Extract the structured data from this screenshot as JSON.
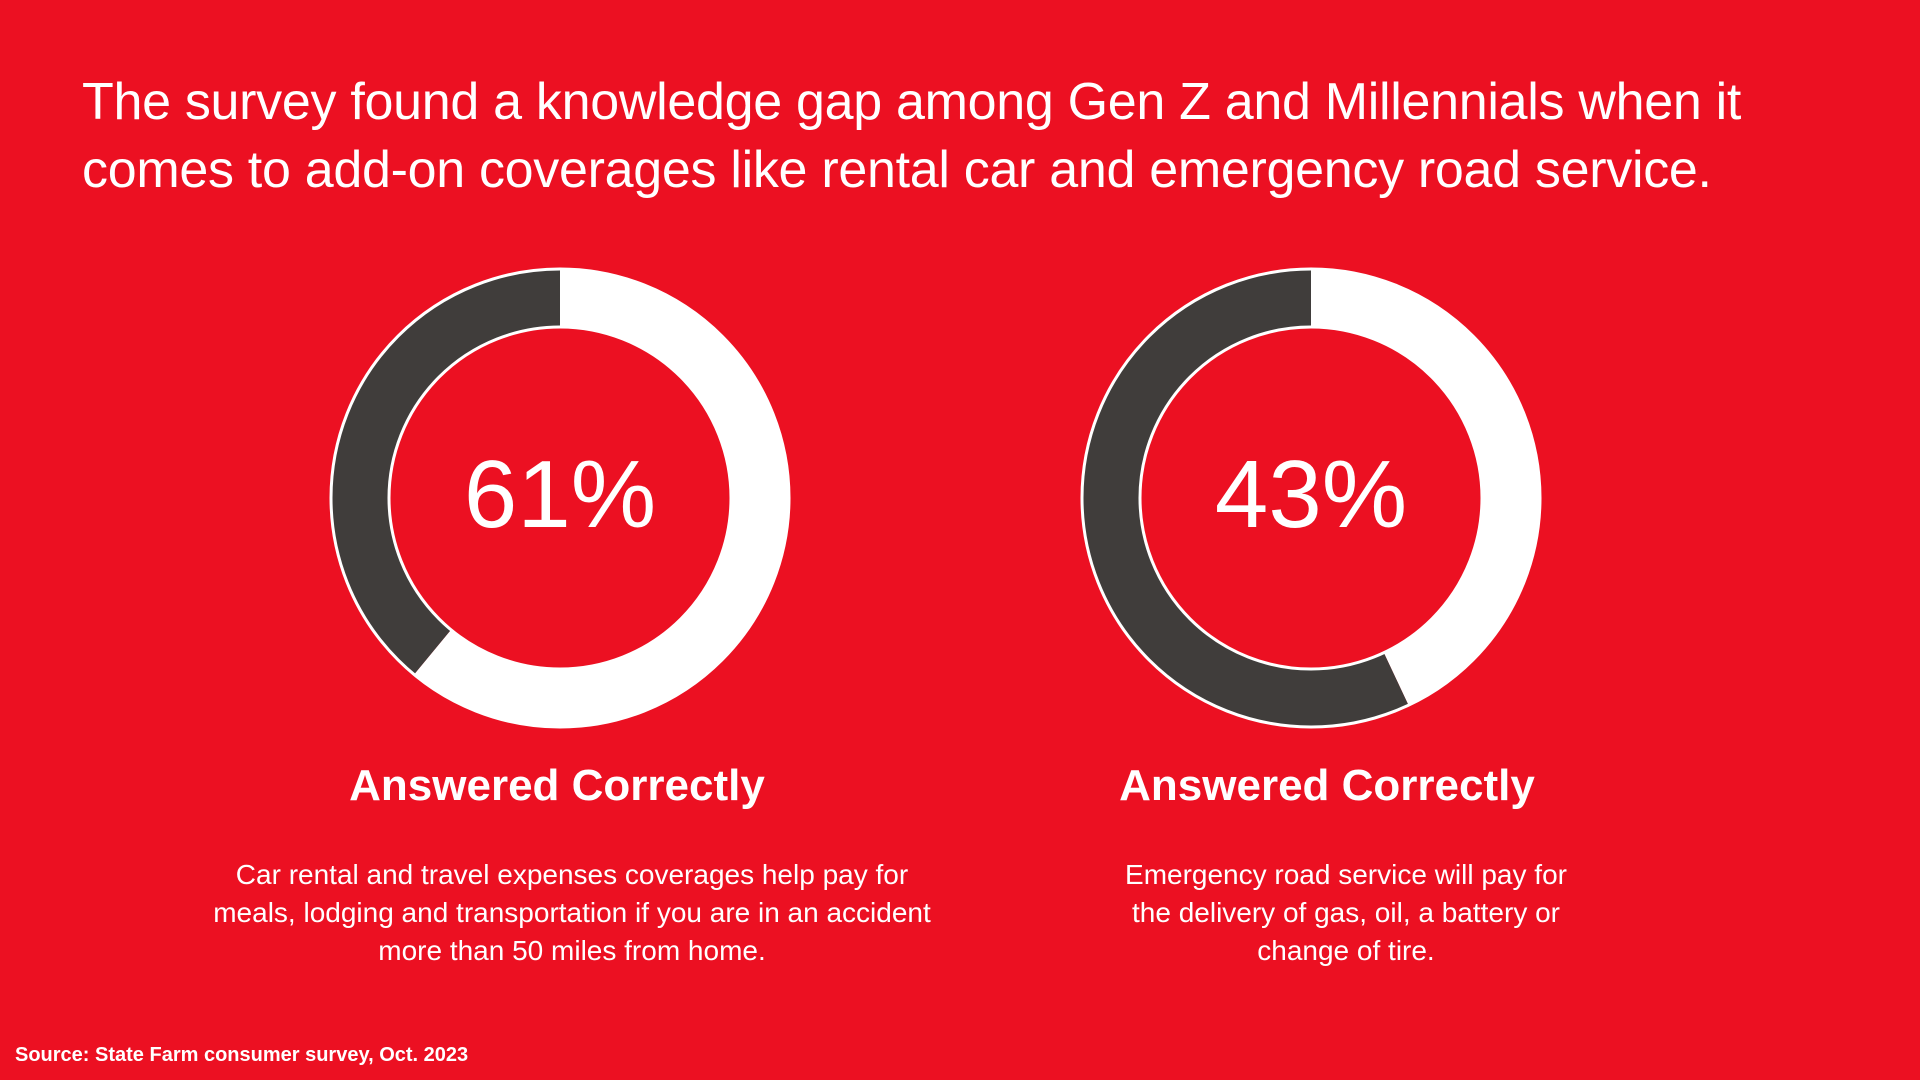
{
  "title": "The survey found a knowledge gap among Gen Z and Millennials when it comes to add-on coverages like rental car and emergency road service.",
  "colors": {
    "background": "#EC1022",
    "answered_correctly": "#FFFFFF",
    "remainder": "#403D3B"
  },
  "chart_data": [
    {
      "type": "pie",
      "variant": "donut",
      "center_label": "61%",
      "values": [
        61,
        39
      ],
      "label": "Answered Correctly",
      "description": "Car rental and travel expenses coverages help pay for meals, lodging and transportation if you are in an accident more than 50 miles from home."
    },
    {
      "type": "pie",
      "variant": "donut",
      "center_label": "43%",
      "values": [
        43,
        57
      ],
      "label": "Answered Correctly",
      "description": "Emergency road service will pay for the delivery of gas, oil, a battery or change of tire."
    }
  ],
  "source": "Source: State Farm consumer survey, Oct. 2023"
}
